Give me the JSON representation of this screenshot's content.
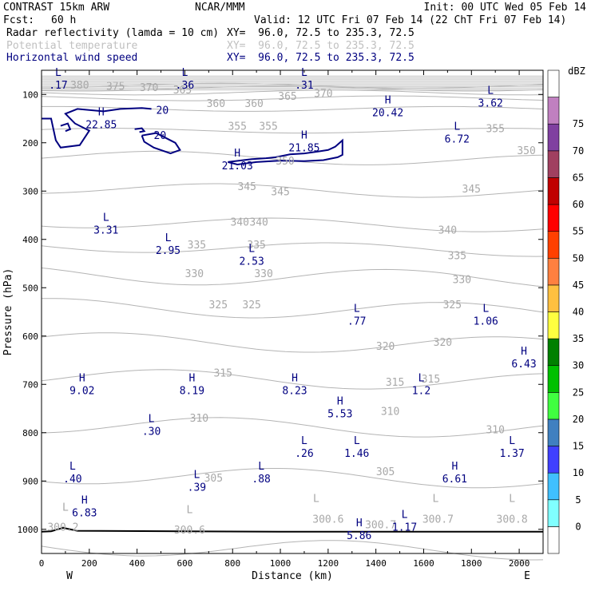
{
  "header": {
    "model": "CONTRAST 15km ARW",
    "center": "NCAR/MMM",
    "init": "Init: 00 UTC Wed 05 Feb 14",
    "fcst_label": "Fcst:",
    "fcst_value": "60 h",
    "valid": "Valid: 12 UTC Fri 07 Feb 14 (22 ChT Fri 07 Feb 14)",
    "fields": [
      {
        "name": "Radar reflectivity (lamda = 10 cm)",
        "xy": "XY=  96.0, 72.5 to 235.3, 72.5",
        "color": "#000000"
      },
      {
        "name": "Potential temperature",
        "xy": "XY=  96.0, 72.5 to 235.3, 72.5",
        "color": "#c0c0c0"
      },
      {
        "name": "Horizontal wind speed",
        "xy": "XY=  96.0, 72.5 to 235.3, 72.5",
        "color": "#000080"
      }
    ]
  },
  "chart_data": {
    "type": "cross-section contour",
    "xlabel": "Distance (km)",
    "ylabel": "Pressure (hPa)",
    "x_ticks": [
      0,
      200,
      400,
      600,
      800,
      1000,
      1200,
      1400,
      1600,
      1800,
      2000
    ],
    "y_ticks": [
      100,
      200,
      300,
      400,
      500,
      600,
      700,
      800,
      900,
      1000
    ],
    "xlim": [
      0,
      2100
    ],
    "ylim": [
      1050,
      50
    ],
    "x_end_labels": {
      "left": "W",
      "right": "E"
    },
    "colorbar": {
      "unit": "dBZ",
      "levels": [
        "0",
        "5",
        "10",
        "15",
        "20",
        "25",
        "30",
        "35",
        "40",
        "45",
        "50",
        "55",
        "60",
        "65",
        "70",
        "75"
      ],
      "colors": [
        "#ffffff",
        "#80ffff",
        "#40c0ff",
        "#4040ff",
        "#4080c0",
        "#40ff40",
        "#00c000",
        "#008000",
        "#ffff40",
        "#ffc040",
        "#ff8040",
        "#ff4000",
        "#ff0000",
        "#c00000",
        "#a04060",
        "#8040a0",
        "#c080c0",
        "#ffffff"
      ]
    },
    "theta_contours": [
      {
        "level": 300,
        "label": "300.2"
      },
      {
        "level": 305,
        "label": "305"
      },
      {
        "level": 310,
        "label": "310"
      },
      {
        "level": 315,
        "label": "315"
      },
      {
        "level": 320,
        "label": "320"
      },
      {
        "level": 325,
        "label": "325"
      },
      {
        "level": 330,
        "label": "330"
      },
      {
        "level": 335,
        "label": "335"
      },
      {
        "level": 340,
        "label": "340"
      },
      {
        "level": 345,
        "label": "345"
      },
      {
        "level": 350,
        "label": "350"
      },
      {
        "level": 355,
        "label": "355"
      },
      {
        "level": 360,
        "label": "360"
      },
      {
        "level": 365,
        "label": "365"
      },
      {
        "level": 370,
        "label": "370"
      },
      {
        "level": 375,
        "label": "375"
      },
      {
        "level": 380,
        "label": "380"
      }
    ],
    "theta_labels": [
      {
        "text": "380",
        "x": 160,
        "p": 80
      },
      {
        "text": "375",
        "x": 310,
        "p": 82
      },
      {
        "text": "370",
        "x": 450,
        "p": 85
      },
      {
        "text": "365",
        "x": 590,
        "p": 90
      },
      {
        "text": "360",
        "x": 730,
        "p": 118
      },
      {
        "text": "360",
        "x": 890,
        "p": 118
      },
      {
        "text": "365",
        "x": 1030,
        "p": 103
      },
      {
        "text": "370",
        "x": 1180,
        "p": 97
      },
      {
        "text": "355",
        "x": 820,
        "p": 165
      },
      {
        "text": "355",
        "x": 950,
        "p": 165
      },
      {
        "text": "355",
        "x": 1900,
        "p": 170
      },
      {
        "text": "350",
        "x": 2030,
        "p": 215
      },
      {
        "text": "350",
        "x": 1020,
        "p": 237
      },
      {
        "text": "345",
        "x": 860,
        "p": 290
      },
      {
        "text": "345",
        "x": 1000,
        "p": 300
      },
      {
        "text": "345",
        "x": 1800,
        "p": 295
      },
      {
        "text": "340",
        "x": 830,
        "p": 363
      },
      {
        "text": "340",
        "x": 910,
        "p": 363
      },
      {
        "text": "340",
        "x": 1700,
        "p": 380
      },
      {
        "text": "335",
        "x": 650,
        "p": 410
      },
      {
        "text": "335",
        "x": 900,
        "p": 410
      },
      {
        "text": "335",
        "x": 1740,
        "p": 433
      },
      {
        "text": "330",
        "x": 640,
        "p": 470
      },
      {
        "text": "330",
        "x": 930,
        "p": 470
      },
      {
        "text": "330",
        "x": 1760,
        "p": 482
      },
      {
        "text": "325",
        "x": 740,
        "p": 534
      },
      {
        "text": "325",
        "x": 880,
        "p": 534
      },
      {
        "text": "325",
        "x": 1720,
        "p": 534
      },
      {
        "text": "320",
        "x": 1440,
        "p": 620
      },
      {
        "text": "320",
        "x": 1680,
        "p": 612
      },
      {
        "text": "315",
        "x": 760,
        "p": 676
      },
      {
        "text": "315",
        "x": 1480,
        "p": 695
      },
      {
        "text": "315",
        "x": 1630,
        "p": 688
      },
      {
        "text": "310",
        "x": 660,
        "p": 769
      },
      {
        "text": "310",
        "x": 1460,
        "p": 755
      },
      {
        "text": "310",
        "x": 1900,
        "p": 793
      },
      {
        "text": "305",
        "x": 720,
        "p": 893
      },
      {
        "text": "305",
        "x": 1440,
        "p": 880
      },
      {
        "text": "300.2",
        "x": 90,
        "p": 995
      },
      {
        "text": "300.6",
        "x": 620,
        "p": 1000
      },
      {
        "text": "300.6",
        "x": 1200,
        "p": 978
      },
      {
        "text": "300.7",
        "x": 1420,
        "p": 990
      },
      {
        "text": "300.7",
        "x": 1660,
        "p": 978
      },
      {
        "text": "300.8",
        "x": 1970,
        "p": 978
      }
    ],
    "theta_extrema_L": [
      {
        "x": 100,
        "p": 975
      },
      {
        "x": 620,
        "p": 980
      },
      {
        "x": 1150,
        "p": 957
      },
      {
        "x": 1650,
        "p": 957
      },
      {
        "x": 1970,
        "p": 957
      }
    ],
    "wind_contour_levels": [
      20
    ],
    "wind_extrema": [
      {
        "type": "L",
        "value": ".17",
        "x": 70,
        "p": 68
      },
      {
        "type": "L",
        "value": ".36",
        "x": 600,
        "p": 68
      },
      {
        "type": "L",
        "value": ".31",
        "x": 1100,
        "p": 68
      },
      {
        "type": "L",
        "value": "3.62",
        "x": 1880,
        "p": 105
      },
      {
        "type": "H",
        "value": "20.42",
        "x": 1450,
        "p": 125
      },
      {
        "type": "H",
        "value": "22.85",
        "x": 250,
        "p": 150
      },
      {
        "type": "L",
        "value": "6.72",
        "x": 1740,
        "p": 180
      },
      {
        "type": "H",
        "value": "21.85",
        "x": 1100,
        "p": 198
      },
      {
        "type": "H",
        "value": "21.03",
        "x": 820,
        "p": 235
      },
      {
        "type": "L",
        "value": "3.31",
        "x": 270,
        "p": 368
      },
      {
        "type": "L",
        "value": "2.95",
        "x": 530,
        "p": 410
      },
      {
        "type": "L",
        "value": "2.53",
        "x": 880,
        "p": 433
      },
      {
        "type": "L",
        "value": ".77",
        "x": 1320,
        "p": 557
      },
      {
        "type": "L",
        "value": "1.06",
        "x": 1860,
        "p": 557
      },
      {
        "type": "H",
        "value": "6.43",
        "x": 2020,
        "p": 645
      },
      {
        "type": "H",
        "value": "9.02",
        "x": 170,
        "p": 700
      },
      {
        "type": "H",
        "value": "8.19",
        "x": 630,
        "p": 700
      },
      {
        "type": "H",
        "value": "8.23",
        "x": 1060,
        "p": 700
      },
      {
        "type": "L",
        "value": "1.2",
        "x": 1590,
        "p": 700
      },
      {
        "type": "H",
        "value": "5.53",
        "x": 1250,
        "p": 748
      },
      {
        "type": "L",
        "value": ".30",
        "x": 460,
        "p": 785
      },
      {
        "type": "L",
        "value": ".26",
        "x": 1100,
        "p": 830
      },
      {
        "type": "L",
        "value": "1.46",
        "x": 1320,
        "p": 830
      },
      {
        "type": "L",
        "value": "1.37",
        "x": 1970,
        "p": 830
      },
      {
        "type": "L",
        "value": ".40",
        "x": 130,
        "p": 883
      },
      {
        "type": "L",
        "value": ".88",
        "x": 920,
        "p": 883
      },
      {
        "type": "H",
        "value": "6.61",
        "x": 1730,
        "p": 883
      },
      {
        "type": "L",
        "value": ".39",
        "x": 650,
        "p": 900
      },
      {
        "type": "H",
        "value": "6.83",
        "x": 180,
        "p": 953
      },
      {
        "type": "H",
        "value": "5.86",
        "x": 1330,
        "p": 1000
      },
      {
        "type": "L",
        "value": "1.17",
        "x": 1520,
        "p": 983
      }
    ],
    "terrain_pressure_hPa": [
      1005,
      1004,
      997,
      1003,
      1005,
      1005
    ]
  }
}
